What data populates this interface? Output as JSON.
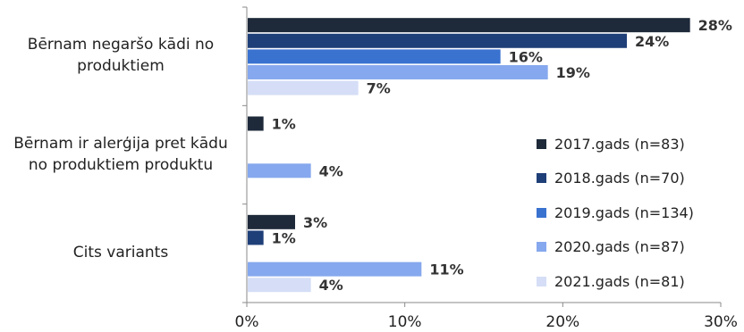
{
  "chart_data": {
    "type": "bar",
    "orientation": "horizontal",
    "title": "",
    "xlabel": "",
    "ylabel": "",
    "xlim": [
      0,
      30
    ],
    "x_ticks": [
      "0%",
      "10%",
      "20%",
      "30%"
    ],
    "x_tick_values": [
      0,
      10,
      20,
      30
    ],
    "grid": false,
    "legend_position": "right",
    "categories": [
      "Bērnam negaršo kādi no produktiem",
      "Bērnam ir alerģija pret kādu no produktiem produktu",
      "Cits variants"
    ],
    "category_lines": [
      [
        "Bērnam negaršo kādi no",
        "produktiem"
      ],
      [
        "Bērnam ir alerģija pret kādu",
        "no produktiem produktu"
      ],
      [
        "Cits variants"
      ]
    ],
    "series": [
      {
        "name": "2017.gads (n=83)",
        "values": [
          28,
          1,
          3
        ],
        "labels": [
          "28%",
          "1%",
          "3%"
        ],
        "color": "#1e2a3a"
      },
      {
        "name": "2018.gads (n=70)",
        "values": [
          24,
          null,
          1
        ],
        "labels": [
          "24%",
          "",
          "1%"
        ],
        "color": "#1f3f78"
      },
      {
        "name": "2019.gads (n=134)",
        "values": [
          16,
          null,
          null
        ],
        "labels": [
          "16%",
          "",
          ""
        ],
        "color": "#3a72d0"
      },
      {
        "name": "2020.gads (n=87)",
        "values": [
          19,
          4,
          11
        ],
        "labels": [
          "19%",
          "4%",
          "11%"
        ],
        "color": "#86a8ee"
      },
      {
        "name": "2021.gads (n=81)",
        "values": [
          7,
          null,
          4
        ],
        "labels": [
          "7%",
          "",
          "4%"
        ],
        "color": "#d5def6"
      }
    ]
  }
}
